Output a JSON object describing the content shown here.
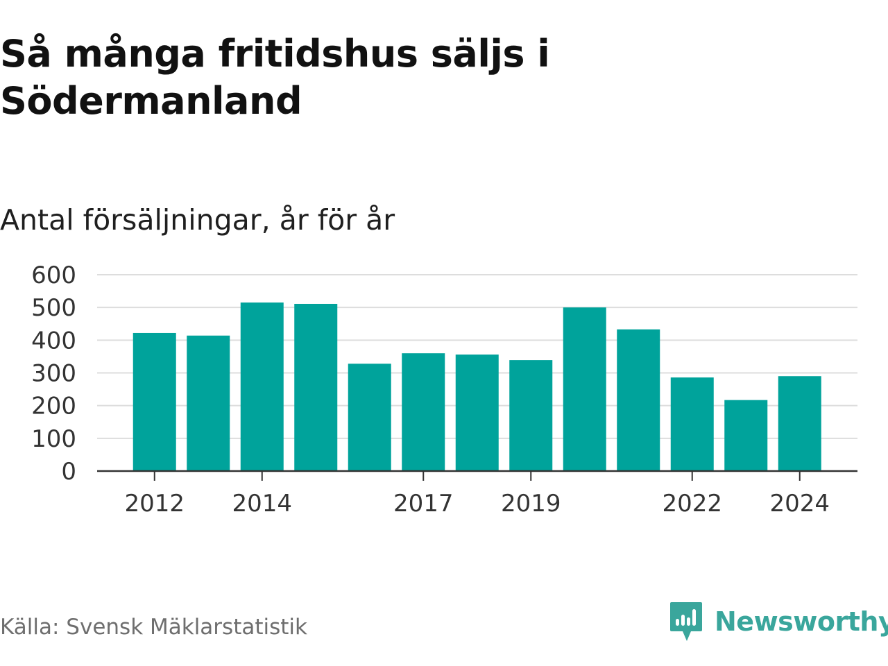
{
  "title": "Så många fritidshus säljs i Södermanland",
  "subtitle": "Antal försäljningar, år för år",
  "source": "Källa: Svensk Mäklarstatistik",
  "brand": {
    "name": "Newsworthy",
    "icon": "newsworthy-bar-chart-bubble-icon"
  },
  "colors": {
    "bar": "#00a39b",
    "grid": "#dddddd",
    "axis": "#333333",
    "brand": "#3aa69c"
  },
  "chart_data": {
    "type": "bar",
    "title": "Så många fritidshus säljs i Södermanland",
    "ylabel": "Antal försäljningar, år för år",
    "categories": [
      "2012",
      "2013",
      "2014",
      "2015",
      "2016",
      "2017",
      "2018",
      "2019",
      "2020",
      "2021",
      "2022",
      "2023",
      "2024"
    ],
    "values": [
      422,
      414,
      515,
      511,
      328,
      360,
      356,
      339,
      500,
      433,
      286,
      217,
      290
    ],
    "ylim": [
      0,
      600
    ],
    "yticks": [
      "0",
      "100",
      "200",
      "300",
      "400",
      "500",
      "600"
    ],
    "xticks": [
      "2012",
      "2014",
      "2017",
      "2019",
      "2022",
      "2024"
    ],
    "grid": true
  }
}
